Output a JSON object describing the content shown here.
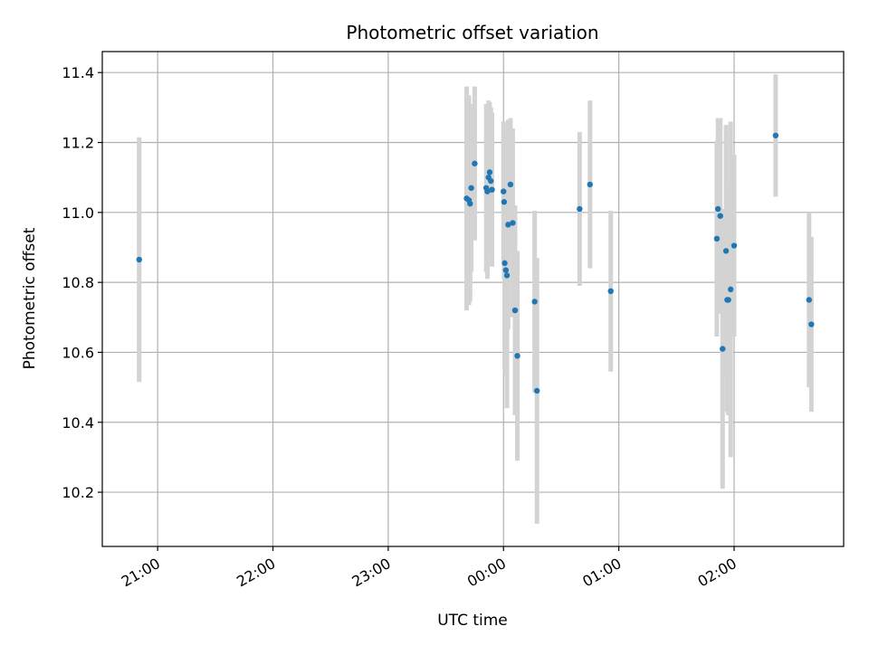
{
  "chart_data": {
    "type": "scatter",
    "title": "Photometric offset variation",
    "xlabel": "UTC time",
    "ylabel": "Photometric offset",
    "x_unit": "hours after 20:00 UTC (ticks wrap past 24:00)",
    "xlim": [
      0.52,
      6.95
    ],
    "ylim": [
      10.045,
      11.46
    ],
    "x_ticks": [
      {
        "value": 1,
        "label": "21:00"
      },
      {
        "value": 2,
        "label": "22:00"
      },
      {
        "value": 3,
        "label": "23:00"
      },
      {
        "value": 4,
        "label": "00:00"
      },
      {
        "value": 5,
        "label": "01:00"
      },
      {
        "value": 6,
        "label": "02:00"
      }
    ],
    "y_ticks": [
      {
        "value": 10.2,
        "label": "10.2"
      },
      {
        "value": 10.4,
        "label": "10.4"
      },
      {
        "value": 10.6,
        "label": "10.6"
      },
      {
        "value": 10.8,
        "label": "10.8"
      },
      {
        "value": 11.0,
        "label": "11.0"
      },
      {
        "value": 11.2,
        "label": "11.2"
      },
      {
        "value": 11.4,
        "label": "11.4"
      }
    ],
    "grid": true,
    "marker_color": "#1f77b4",
    "errorbar_color": "#d3d3d3",
    "points": [
      {
        "x": 0.84,
        "y": 10.865,
        "err": 0.35
      },
      {
        "x": 3.68,
        "y": 11.04,
        "err": 0.32
      },
      {
        "x": 3.7,
        "y": 11.035,
        "err": 0.3
      },
      {
        "x": 3.71,
        "y": 11.025,
        "err": 0.28
      },
      {
        "x": 3.72,
        "y": 11.07,
        "err": 0.24
      },
      {
        "x": 3.75,
        "y": 11.14,
        "err": 0.22
      },
      {
        "x": 3.85,
        "y": 11.07,
        "err": 0.24
      },
      {
        "x": 3.86,
        "y": 11.06,
        "err": 0.25
      },
      {
        "x": 3.87,
        "y": 11.1,
        "err": 0.22
      },
      {
        "x": 3.88,
        "y": 11.115,
        "err": 0.2
      },
      {
        "x": 3.89,
        "y": 11.09,
        "err": 0.21
      },
      {
        "x": 3.9,
        "y": 11.065,
        "err": 0.22
      },
      {
        "x": 4.0,
        "y": 11.06,
        "err": 0.2
      },
      {
        "x": 4.005,
        "y": 11.03,
        "err": 0.22
      },
      {
        "x": 4.01,
        "y": 10.855,
        "err": 0.3
      },
      {
        "x": 4.02,
        "y": 10.835,
        "err": 0.3
      },
      {
        "x": 4.03,
        "y": 10.82,
        "err": 0.38
      },
      {
        "x": 4.04,
        "y": 10.965,
        "err": 0.3
      },
      {
        "x": 4.06,
        "y": 11.08,
        "err": 0.19
      },
      {
        "x": 4.08,
        "y": 10.97,
        "err": 0.27
      },
      {
        "x": 4.1,
        "y": 10.72,
        "err": 0.3
      },
      {
        "x": 4.12,
        "y": 10.59,
        "err": 0.3
      },
      {
        "x": 4.27,
        "y": 10.745,
        "err": 0.26
      },
      {
        "x": 4.29,
        "y": 10.49,
        "err": 0.38
      },
      {
        "x": 4.66,
        "y": 11.01,
        "err": 0.22
      },
      {
        "x": 4.75,
        "y": 11.08,
        "err": 0.24
      },
      {
        "x": 4.93,
        "y": 10.775,
        "err": 0.23
      },
      {
        "x": 5.85,
        "y": 10.925,
        "err": 0.28
      },
      {
        "x": 5.86,
        "y": 11.01,
        "err": 0.26
      },
      {
        "x": 5.88,
        "y": 10.99,
        "err": 0.28
      },
      {
        "x": 5.9,
        "y": 10.61,
        "err": 0.4
      },
      {
        "x": 5.93,
        "y": 10.89,
        "err": 0.36
      },
      {
        "x": 5.94,
        "y": 10.75,
        "err": 0.32
      },
      {
        "x": 5.95,
        "y": 10.75,
        "err": 0.33
      },
      {
        "x": 5.97,
        "y": 10.78,
        "err": 0.48
      },
      {
        "x": 6.0,
        "y": 10.905,
        "err": 0.26
      },
      {
        "x": 6.36,
        "y": 11.22,
        "err": 0.175
      },
      {
        "x": 6.65,
        "y": 10.75,
        "err": 0.25
      },
      {
        "x": 6.67,
        "y": 10.68,
        "err": 0.25
      }
    ]
  }
}
